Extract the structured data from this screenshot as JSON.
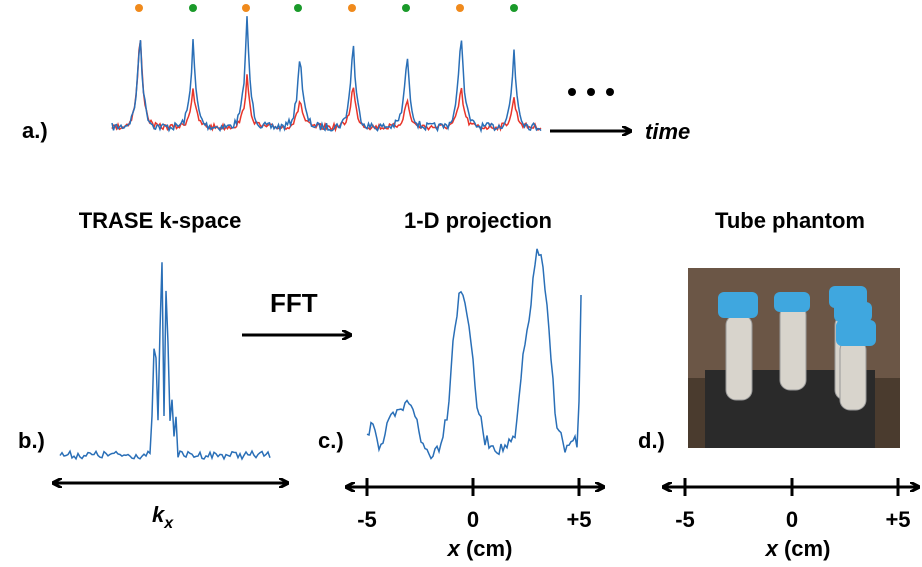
{
  "panel_a": {
    "label": "a.)",
    "axis_label": "time"
  },
  "panel_b": {
    "title": "TRASE k-space",
    "label": "b.)",
    "axis_label": "k",
    "axis_subscript": "x"
  },
  "fft": {
    "label": "FFT"
  },
  "panel_c": {
    "title": "1-D projection",
    "label": "c.)",
    "ticks": [
      "-5",
      "0",
      "+5"
    ],
    "axis_label": "x",
    "axis_unit": "(cm)"
  },
  "panel_d": {
    "title": "Tube phantom",
    "label": "d.)",
    "ticks": [
      "-5",
      "0",
      "+5"
    ],
    "axis_label": "x",
    "axis_unit": "(cm)"
  }
}
